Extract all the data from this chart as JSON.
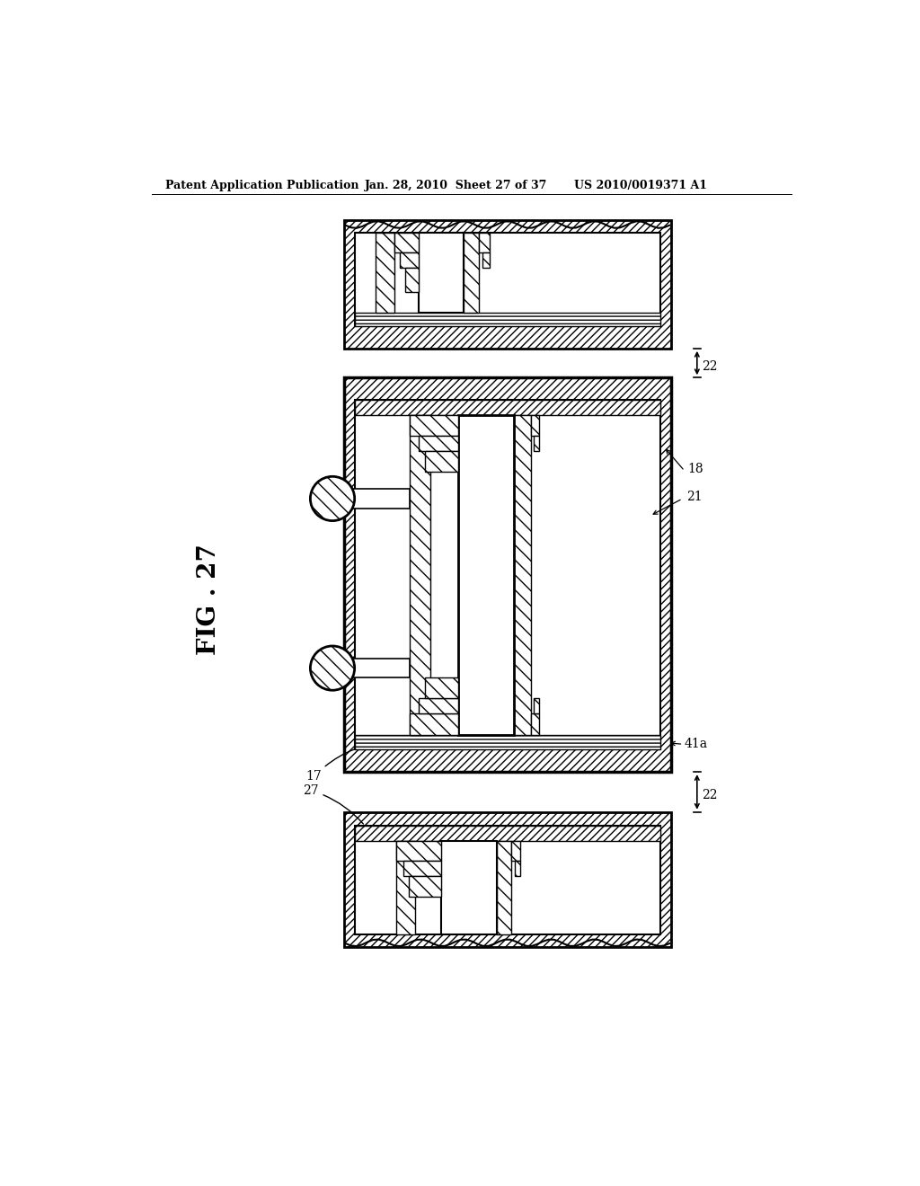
{
  "title_left": "Patent Application Publication",
  "title_mid": "Jan. 28, 2010  Sheet 27 of 37",
  "title_right": "US 2010/0019371 A1",
  "fig_label": "FIG. 27",
  "bg_color": "#ffffff"
}
